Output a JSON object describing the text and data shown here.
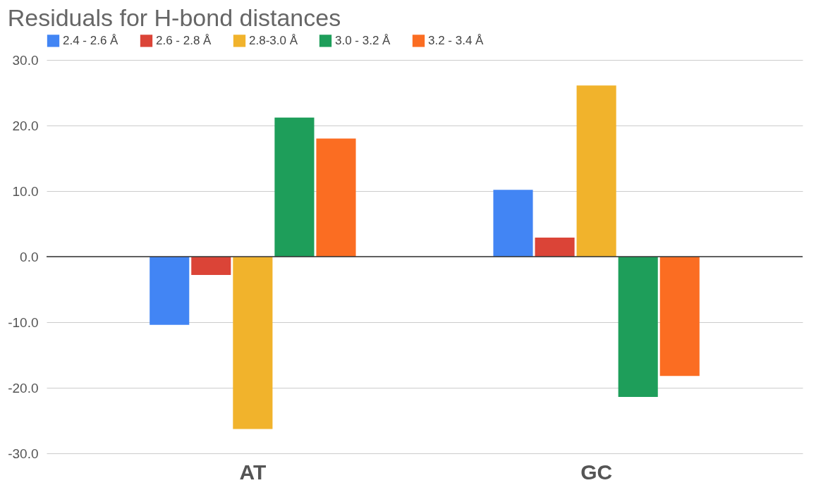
{
  "chart_data": {
    "type": "bar",
    "title": "Residuals for H-bond distances",
    "categories": [
      "AT",
      "GC"
    ],
    "series": [
      {
        "name": "2.4 - 2.6 Å",
        "color": "#4285f4",
        "values": [
          -10.4,
          10.2
        ]
      },
      {
        "name": "2.6 - 2.8 Å",
        "color": "#db4437",
        "values": [
          -2.8,
          2.9
        ]
      },
      {
        "name": "2.8-3.0 Å",
        "color": "#f1b32c",
        "values": [
          -26.3,
          26.1
        ]
      },
      {
        "name": "3.0 - 3.2 Å",
        "color": "#1e9e5a",
        "values": [
          21.2,
          -21.4
        ]
      },
      {
        "name": "3.2 - 3.4 Å",
        "color": "#fb6d22",
        "values": [
          18.0,
          -18.2
        ]
      }
    ],
    "ylim": [
      -30,
      30
    ],
    "yticks": [
      {
        "value": -30,
        "label": "-30.0"
      },
      {
        "value": -20,
        "label": "-20.0"
      },
      {
        "value": -10,
        "label": "-10.0"
      },
      {
        "value": 0,
        "label": "0.0"
      },
      {
        "value": 10,
        "label": "10.0"
      },
      {
        "value": 20,
        "label": "20.0"
      },
      {
        "value": 30,
        "label": "30.0"
      }
    ],
    "ref_lines": [
      {
        "axis": "y",
        "value": 0,
        "color": "#333333"
      }
    ],
    "grid": "y",
    "legend": "top"
  }
}
